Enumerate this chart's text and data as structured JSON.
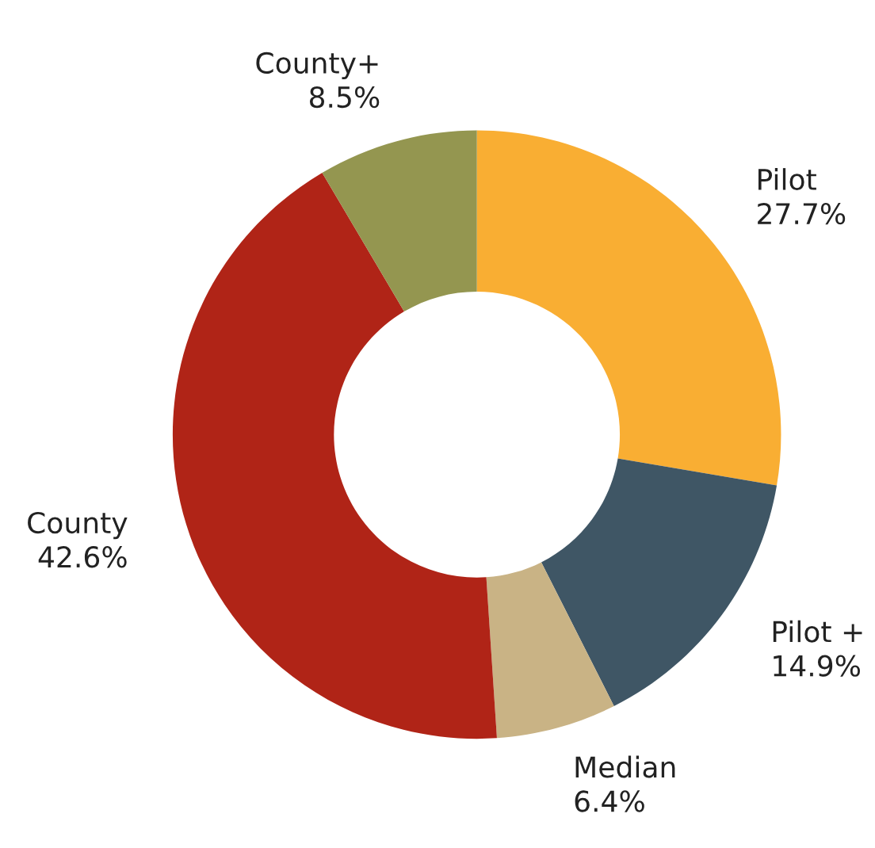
{
  "chart_data": {
    "type": "donut",
    "categories": [
      "Pilot",
      "Pilot +",
      "Median",
      "County",
      "County+"
    ],
    "values": [
      27.7,
      14.9,
      6.4,
      42.6,
      8.5
    ],
    "value_labels": [
      "27.7%",
      "14.9%",
      "6.4%",
      "42.6%",
      "8.5%"
    ],
    "colors": [
      "#f9ae33",
      "#3f5665",
      "#c9b385",
      "#b02417",
      "#949650"
    ]
  }
}
